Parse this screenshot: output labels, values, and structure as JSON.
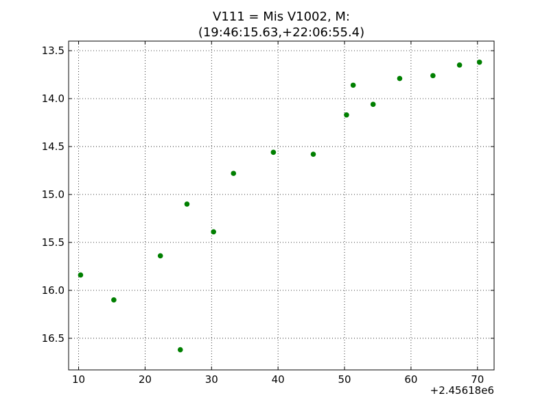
{
  "chart_data": {
    "type": "scatter",
    "title_line1": "V111 = Mis V1002, M:",
    "title_line2": "(19:46:15.63,+22:06:55.4)",
    "xlabel": "",
    "ylabel": "",
    "x_offset_label": "+2.45618e6",
    "xlim": [
      8.5,
      72.5
    ],
    "ylim": [
      16.83,
      13.4
    ],
    "y_inverted": true,
    "grid": true,
    "marker_color": "#007f00",
    "x_ticks": [
      10,
      20,
      30,
      40,
      50,
      60,
      70
    ],
    "y_ticks": [
      13.5,
      14.0,
      14.5,
      15.0,
      15.5,
      16.0,
      16.5
    ],
    "x_tick_labels": [
      "10",
      "20",
      "30",
      "40",
      "50",
      "60",
      "70"
    ],
    "y_tick_labels": [
      "13.5",
      "14.0",
      "14.5",
      "15.0",
      "15.5",
      "16.0",
      "16.5"
    ],
    "points": [
      {
        "x": 10.3,
        "y": 15.84
      },
      {
        "x": 15.3,
        "y": 16.1
      },
      {
        "x": 22.3,
        "y": 15.64
      },
      {
        "x": 25.3,
        "y": 16.62
      },
      {
        "x": 26.3,
        "y": 15.1
      },
      {
        "x": 30.3,
        "y": 15.39
      },
      {
        "x": 33.3,
        "y": 14.78
      },
      {
        "x": 39.3,
        "y": 14.56
      },
      {
        "x": 45.3,
        "y": 14.58
      },
      {
        "x": 50.3,
        "y": 14.17
      },
      {
        "x": 51.3,
        "y": 13.86
      },
      {
        "x": 54.3,
        "y": 14.06
      },
      {
        "x": 58.3,
        "y": 13.79
      },
      {
        "x": 63.3,
        "y": 13.76
      },
      {
        "x": 67.3,
        "y": 13.65
      },
      {
        "x": 70.3,
        "y": 13.62
      }
    ]
  }
}
